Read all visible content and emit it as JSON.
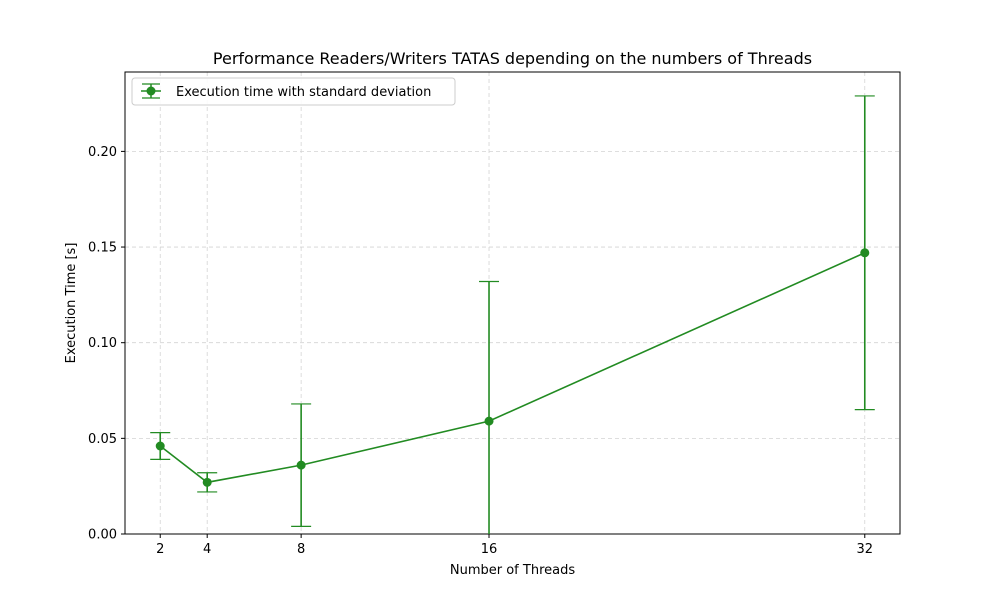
{
  "chart_data": {
    "type": "line",
    "title": "Performance Readers/Writers TATAS depending on the numbers of Threads",
    "xlabel": "Number of Threads",
    "ylabel": "Execution Time [s]",
    "x": [
      2,
      4,
      8,
      16,
      32
    ],
    "xlim": [
      0.5,
      33.5
    ],
    "ylim": [
      0,
      0.2415
    ],
    "x_ticks": [
      "2",
      "4",
      "8",
      "16",
      "32"
    ],
    "y_ticks": [
      "0.00",
      "0.05",
      "0.10",
      "0.15",
      "0.20"
    ],
    "grid": true,
    "legend_position": "top-left",
    "series": [
      {
        "name": "Execution time with standard deviation",
        "color": "#228b22",
        "values": [
          0.046,
          0.027,
          0.036,
          0.059,
          0.147
        ],
        "error": [
          0.007,
          0.005,
          0.032,
          0.073,
          0.082
        ]
      }
    ]
  }
}
